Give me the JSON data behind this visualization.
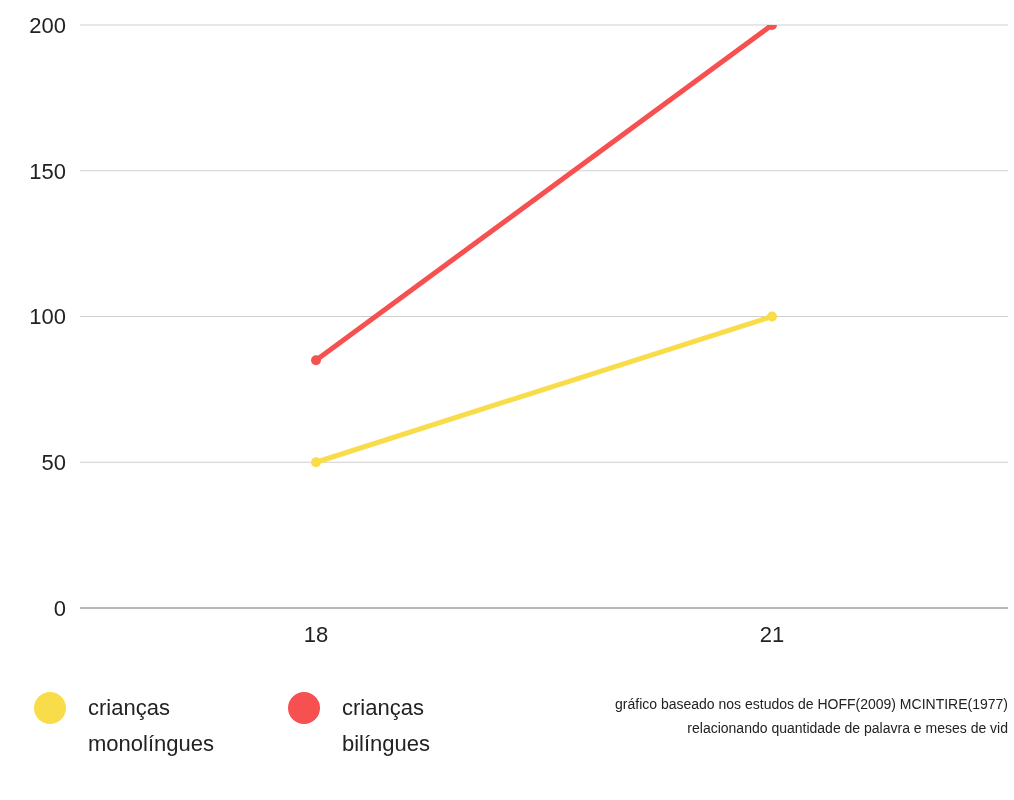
{
  "chart_data": {
    "type": "line",
    "categories": [
      "18",
      "21"
    ],
    "series": [
      {
        "name": "crianças monolíngues",
        "color": "#f9dc4a",
        "values": [
          50,
          100
        ]
      },
      {
        "name": "crianças bilíngues",
        "color": "#f65150",
        "values": [
          85,
          200
        ]
      }
    ],
    "ylim": [
      0,
      200
    ],
    "yticks": [
      0,
      50,
      100,
      150,
      200
    ],
    "grid": "y",
    "legend": "bottom left",
    "marker": "circle",
    "line_style": "solid",
    "annotations": [
      "gráfico baseado nos estudos de  HOFF(2009) MCINTIRE(1977) relacionando quantidade de palavra e meses de vid"
    ]
  }
}
